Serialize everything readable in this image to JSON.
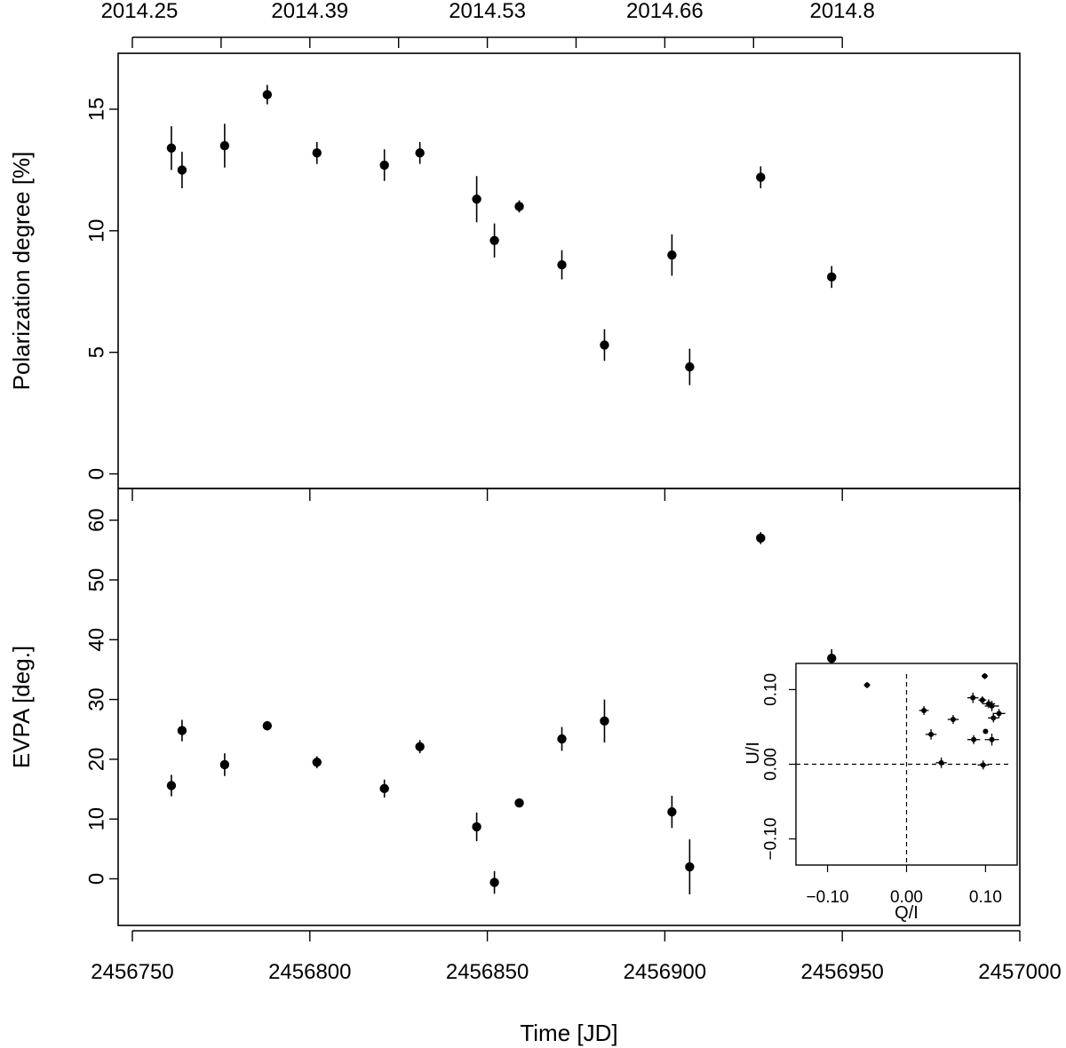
{
  "chart_data": [
    {
      "id": "pol",
      "type": "scatter",
      "ylabel": "Polarization degree [%]",
      "xlim": [
        2456746,
        2457000
      ],
      "ylim": [
        -0.6,
        17.3
      ],
      "yticks": [
        0,
        5,
        10,
        15
      ],
      "top_axis": {
        "ticks": [
          2456750,
          2456775,
          2456800,
          2456825,
          2456850,
          2456875,
          2456900,
          2456925,
          2456950
        ],
        "labels": [
          {
            "x": 2456752,
            "text": "2014.25"
          },
          {
            "x": 2456800,
            "text": "2014.39"
          },
          {
            "x": 2456850,
            "text": "2014.53"
          },
          {
            "x": 2456900,
            "text": "2014.66"
          },
          {
            "x": 2456950,
            "text": "2014.8"
          }
        ]
      },
      "points": [
        {
          "x": 2456761,
          "y": 13.4,
          "err": 0.9
        },
        {
          "x": 2456764,
          "y": 12.5,
          "err": 0.75
        },
        {
          "x": 2456776,
          "y": 13.5,
          "err": 0.9
        },
        {
          "x": 2456788,
          "y": 15.6,
          "err": 0.4
        },
        {
          "x": 2456802,
          "y": 13.2,
          "err": 0.45
        },
        {
          "x": 2456821,
          "y": 12.7,
          "err": 0.65
        },
        {
          "x": 2456831,
          "y": 13.2,
          "err": 0.45
        },
        {
          "x": 2456847,
          "y": 11.3,
          "err": 0.95
        },
        {
          "x": 2456852,
          "y": 9.6,
          "err": 0.7
        },
        {
          "x": 2456859,
          "y": 11.0,
          "err": 0.25
        },
        {
          "x": 2456871,
          "y": 8.6,
          "err": 0.6
        },
        {
          "x": 2456883,
          "y": 5.3,
          "err": 0.65
        },
        {
          "x": 2456902,
          "y": 9.0,
          "err": 0.85
        },
        {
          "x": 2456907,
          "y": 4.4,
          "err": 0.75
        },
        {
          "x": 2456927,
          "y": 12.2,
          "err": 0.45
        },
        {
          "x": 2456947,
          "y": 8.1,
          "err": 0.45
        }
      ]
    },
    {
      "id": "evpa",
      "type": "scatter",
      "xlabel": "Time [JD]",
      "ylabel": "EVPA [deg.]",
      "xlim": [
        2456746,
        2457000
      ],
      "ylim": [
        -7.8,
        65.3
      ],
      "yticks": [
        0,
        10,
        20,
        30,
        40,
        50,
        60
      ],
      "xticks": [
        2456750,
        2456800,
        2456850,
        2456900,
        2456950,
        2457000
      ],
      "xtick_labels": [
        "2456750",
        "2456800",
        "2456850",
        "2456900",
        "2456950",
        "2457000"
      ],
      "points": [
        {
          "x": 2456761,
          "y": 15.6,
          "err": 1.8
        },
        {
          "x": 2456764,
          "y": 24.8,
          "err": 1.8
        },
        {
          "x": 2456776,
          "y": 19.1,
          "err": 1.9
        },
        {
          "x": 2456788,
          "y": 25.6,
          "err": 0.8
        },
        {
          "x": 2456802,
          "y": 19.5,
          "err": 1.0
        },
        {
          "x": 2456821,
          "y": 15.1,
          "err": 1.5
        },
        {
          "x": 2456831,
          "y": 22.1,
          "err": 1.1
        },
        {
          "x": 2456847,
          "y": 8.7,
          "err": 2.4
        },
        {
          "x": 2456852,
          "y": -0.6,
          "err": 1.9
        },
        {
          "x": 2456859,
          "y": 12.7,
          "err": 0.5
        },
        {
          "x": 2456871,
          "y": 23.4,
          "err": 2.0
        },
        {
          "x": 2456883,
          "y": 26.4,
          "err": 3.6
        },
        {
          "x": 2456902,
          "y": 11.2,
          "err": 2.7
        },
        {
          "x": 2456907,
          "y": 2.0,
          "err": 4.6
        },
        {
          "x": 2456927,
          "y": 57.0,
          "err": 1.0
        },
        {
          "x": 2456947,
          "y": 36.9,
          "err": 1.5
        }
      ]
    },
    {
      "id": "qu-inset",
      "type": "scatter",
      "xlabel": "Q/I",
      "ylabel": "U/I",
      "xlim": [
        -0.14,
        0.14
      ],
      "ylim": [
        -0.135,
        0.135
      ],
      "xticks": [
        -0.1,
        0.0,
        0.1
      ],
      "xtick_labels": [
        "−0.10",
        "0.00",
        "0.10"
      ],
      "yticks": [
        -0.1,
        0.0,
        0.1
      ],
      "ytick_labels": [
        "−0.10",
        "0.00",
        "0.10"
      ],
      "zero_lines": true,
      "points": [
        {
          "x": -0.05,
          "y": 0.106,
          "ex": 0.004,
          "ey": 0.004
        },
        {
          "x": 0.022,
          "y": 0.072,
          "ex": 0.006,
          "ey": 0.006
        },
        {
          "x": 0.031,
          "y": 0.04,
          "ex": 0.007,
          "ey": 0.007
        },
        {
          "x": 0.044,
          "y": 0.002,
          "ex": 0.007,
          "ey": 0.007
        },
        {
          "x": 0.059,
          "y": 0.06,
          "ex": 0.007,
          "ey": 0.006
        },
        {
          "x": 0.084,
          "y": 0.089,
          "ex": 0.007,
          "ey": 0.007
        },
        {
          "x": 0.085,
          "y": 0.033,
          "ex": 0.008,
          "ey": 0.006
        },
        {
          "x": 0.096,
          "y": 0.086,
          "ex": 0.005,
          "ey": 0.005
        },
        {
          "x": 0.097,
          "y": -0.001,
          "ex": 0.007,
          "ey": 0.006
        },
        {
          "x": 0.099,
          "y": 0.118,
          "ex": 0.004,
          "ey": 0.004
        },
        {
          "x": 0.1,
          "y": 0.044,
          "ex": 0.002,
          "ey": 0.002
        },
        {
          "x": 0.104,
          "y": 0.081,
          "ex": 0.008,
          "ey": 0.006
        },
        {
          "x": 0.108,
          "y": 0.078,
          "ex": 0.009,
          "ey": 0.007
        },
        {
          "x": 0.11,
          "y": 0.062,
          "ex": 0.007,
          "ey": 0.006
        },
        {
          "x": 0.108,
          "y": 0.033,
          "ex": 0.009,
          "ey": 0.008
        },
        {
          "x": 0.117,
          "y": 0.068,
          "ex": 0.008,
          "ey": 0.006
        }
      ]
    }
  ]
}
